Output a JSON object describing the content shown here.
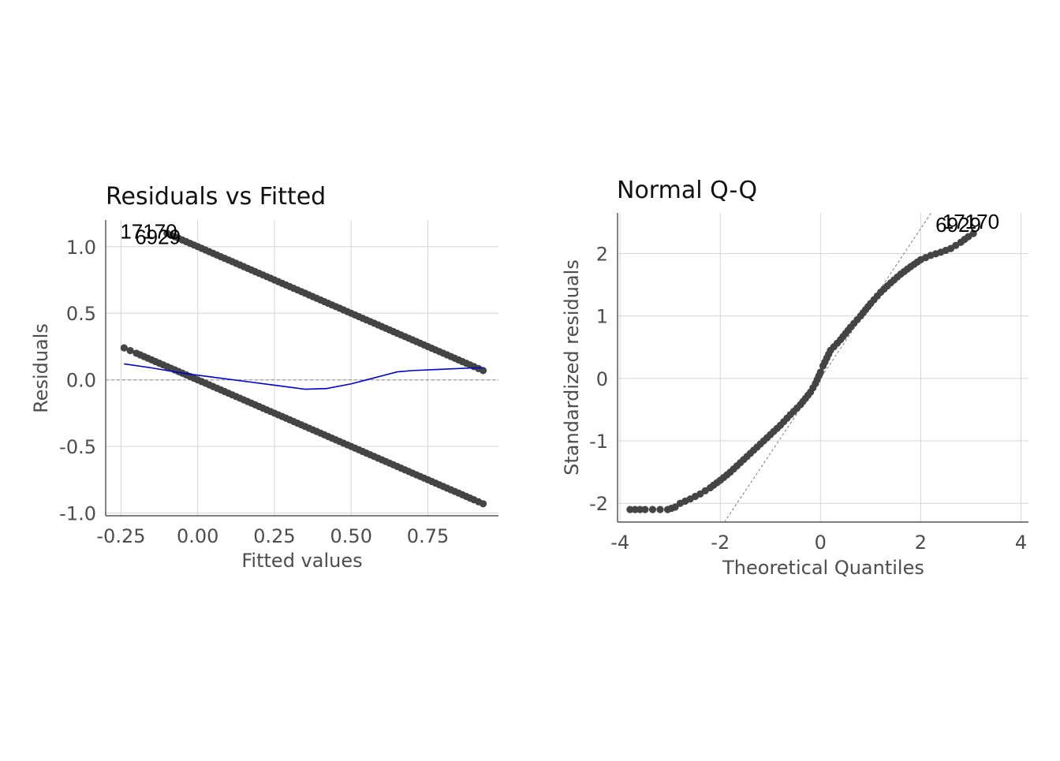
{
  "chart_data": [
    {
      "type": "scatter",
      "title": "Residuals vs Fitted",
      "xlabel": "Fitted values",
      "ylabel": "Residuals",
      "xlim": [
        -0.3,
        0.98
      ],
      "ylim": [
        -1.02,
        1.2
      ],
      "xticks": [
        -0.25,
        0.0,
        0.25,
        0.5,
        0.75
      ],
      "xtick_labels": [
        "-0.25",
        "0.00",
        "0.25",
        "0.50",
        "0.75"
      ],
      "yticks": [
        -1.0,
        -0.5,
        0.0,
        0.5,
        1.0
      ],
      "ytick_labels": [
        "-1.0",
        "-0.5",
        "0.0",
        "0.5",
        "1.0"
      ],
      "grid": true,
      "reference_line": {
        "y": 0,
        "style": "dashed"
      },
      "series": [
        {
          "x": [
            -0.24,
            -0.22,
            -0.2,
            -0.15,
            -0.1,
            -0.05,
            0.0,
            0.05,
            0.1,
            0.15,
            0.2,
            0.25,
            0.3,
            0.35,
            0.4,
            0.45,
            0.5,
            0.55,
            0.6,
            0.65,
            0.7,
            0.75,
            0.8,
            0.85,
            0.9,
            0.93
          ],
          "y": [
            0.24,
            0.22,
            0.2,
            0.15,
            0.1,
            0.05,
            0.0,
            -0.05,
            -0.1,
            -0.15,
            -0.2,
            -0.25,
            -0.3,
            -0.35,
            -0.4,
            -0.45,
            -0.5,
            -0.55,
            -0.6,
            -0.65,
            -0.7,
            -0.75,
            -0.8,
            -0.85,
            -0.9,
            -0.93
          ]
        },
        {
          "x": [
            -0.1,
            -0.05,
            0.0,
            0.05,
            0.1,
            0.15,
            0.2,
            0.25,
            0.3,
            0.35,
            0.4,
            0.45,
            0.5,
            0.55,
            0.6,
            0.65,
            0.7,
            0.75,
            0.8,
            0.85,
            0.9,
            0.93
          ],
          "y": [
            1.1,
            1.05,
            1.0,
            0.95,
            0.9,
            0.85,
            0.8,
            0.75,
            0.7,
            0.65,
            0.6,
            0.55,
            0.5,
            0.45,
            0.4,
            0.35,
            0.3,
            0.25,
            0.2,
            0.15,
            0.1,
            0.07
          ]
        }
      ],
      "smooth_line": {
        "color": "#0000cc",
        "x": [
          -0.24,
          -0.15,
          -0.05,
          0.05,
          0.15,
          0.25,
          0.35,
          0.42,
          0.5,
          0.55,
          0.6,
          0.65,
          0.7,
          0.8,
          0.9,
          0.93
        ],
        "y": [
          0.12,
          0.09,
          0.05,
          0.02,
          -0.01,
          -0.04,
          -0.07,
          -0.065,
          -0.03,
          0.0,
          0.03,
          0.06,
          0.07,
          0.08,
          0.09,
          0.09
        ]
      },
      "point_labels": [
        {
          "text": "17170",
          "x": -0.16,
          "y": 1.06
        },
        {
          "text": "6929",
          "x": -0.13,
          "y": 1.02
        }
      ]
    },
    {
      "type": "scatter",
      "title": "Normal Q-Q",
      "xlabel": "Theoretical Quantiles",
      "ylabel": "Standardized residuals",
      "xlim": [
        -4.05,
        4.15
      ],
      "ylim": [
        -2.3,
        2.65
      ],
      "xticks": [
        -4,
        -2,
        0,
        2,
        4
      ],
      "xtick_labels": [
        "-4",
        "-2",
        "0",
        "2",
        "4"
      ],
      "yticks": [
        -2,
        -1,
        0,
        1,
        2
      ],
      "ytick_labels": [
        "-2",
        "-1",
        "0",
        "1",
        "2"
      ],
      "grid": true,
      "reference_line": {
        "slope": 1.2,
        "intercept": 0,
        "style": "dashed"
      },
      "series": [
        {
          "x": [
            -3.8,
            -3.5,
            -3.35,
            -3.2,
            -3.05,
            -2.9,
            -2.8,
            -2.6,
            -2.4,
            -2.2,
            -2.0,
            -1.8,
            -1.6,
            -1.4,
            -1.2,
            -1.0,
            -0.8,
            -0.6,
            -0.4,
            -0.2,
            -0.1,
            0.0,
            0.05,
            0.2,
            0.4,
            0.6,
            0.8,
            1.0,
            1.2,
            1.4,
            1.6,
            1.8,
            2.0,
            2.2,
            2.4,
            2.6,
            2.8,
            2.95,
            3.05
          ],
          "y": [
            -2.1,
            -2.1,
            -2.1,
            -2.1,
            -2.1,
            -2.06,
            -2.0,
            -1.93,
            -1.85,
            -1.75,
            -1.63,
            -1.5,
            -1.35,
            -1.2,
            -1.05,
            -0.9,
            -0.75,
            -0.58,
            -0.42,
            -0.22,
            -0.08,
            0.1,
            0.2,
            0.45,
            0.62,
            0.82,
            1.0,
            1.2,
            1.38,
            1.53,
            1.67,
            1.79,
            1.9,
            1.97,
            2.02,
            2.08,
            2.18,
            2.27,
            2.32
          ]
        }
      ],
      "point_labels": [
        {
          "text": "6929",
          "x": 2.75,
          "y": 2.35
        },
        {
          "text": "17170",
          "x": 3.0,
          "y": 2.4
        }
      ]
    }
  ]
}
